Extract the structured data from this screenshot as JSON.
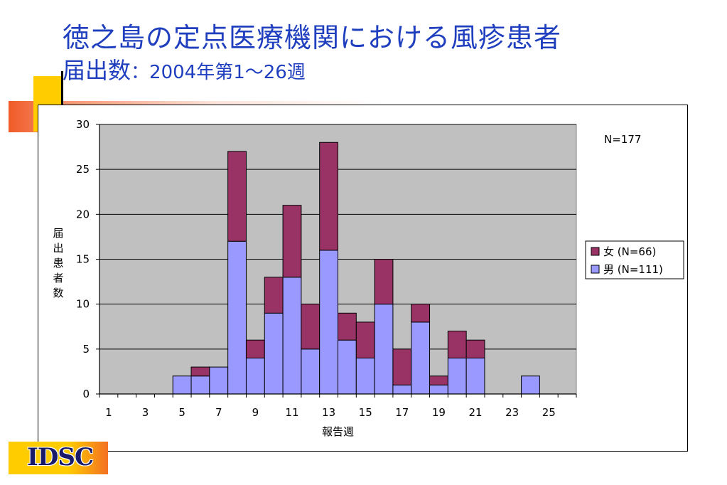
{
  "slide": {
    "title_line1": "徳之島の定点医療機関における風疹患者",
    "title_line2_main": "届出数",
    "title_line2_sep": "：",
    "title_line2_range": "2004年第1〜26週",
    "logo": "IDSC"
  },
  "chart_data": {
    "type": "bar",
    "stacked": true,
    "annotation": "N=177",
    "xlabel": "報告週",
    "ylabel": "届出患者数",
    "ylim": [
      0,
      30
    ],
    "yticks": [
      0,
      5,
      10,
      15,
      20,
      25,
      30
    ],
    "weeks": [
      1,
      2,
      3,
      4,
      5,
      6,
      7,
      8,
      9,
      10,
      11,
      12,
      13,
      14,
      15,
      16,
      17,
      18,
      19,
      20,
      21,
      22,
      23,
      24,
      25,
      26
    ],
    "xtick_labels": [
      "1",
      "3",
      "5",
      "7",
      "9",
      "11",
      "13",
      "15",
      "17",
      "19",
      "21",
      "23",
      "25"
    ],
    "grid": true,
    "legend_position": "right",
    "series": [
      {
        "name": "男 (N=111)",
        "color": "#9999ff",
        "values": [
          0,
          0,
          0,
          0,
          2,
          2,
          3,
          17,
          4,
          9,
          13,
          5,
          16,
          6,
          4,
          10,
          1,
          8,
          1,
          4,
          4,
          0,
          0,
          2,
          0,
          0
        ]
      },
      {
        "name": "女 (N=66)",
        "color": "#993366",
        "values": [
          0,
          0,
          0,
          0,
          0,
          1,
          0,
          10,
          2,
          4,
          8,
          5,
          12,
          3,
          4,
          5,
          4,
          2,
          1,
          3,
          2,
          0,
          0,
          0,
          0,
          0
        ]
      }
    ],
    "legend_order": [
      "女 (N=66)",
      "男 (N=111)"
    ]
  }
}
